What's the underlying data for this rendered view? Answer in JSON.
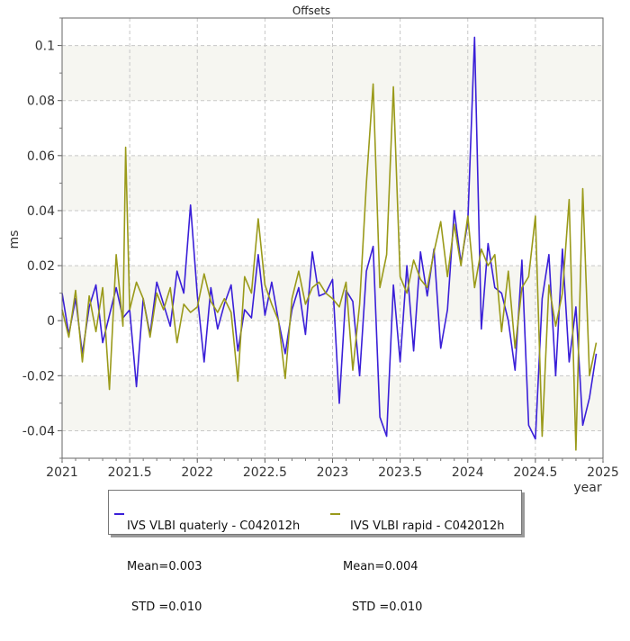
{
  "chart_data": {
    "type": "line",
    "title": "Offsets",
    "xlabel": "year",
    "ylabel": "ms",
    "xlim": [
      2021,
      2025
    ],
    "ylim": [
      -0.05,
      0.11
    ],
    "x_ticks": [
      "2021",
      "2021.5",
      "2022",
      "2022.5",
      "2023",
      "2023.5",
      "2024",
      "2024.5",
      "2025"
    ],
    "y_ticks": [
      "-0.04",
      "-0.02",
      "0",
      "0.02",
      "0.04",
      "0.06",
      "0.08",
      "0.1"
    ],
    "grid": true,
    "legend_position": "bottom",
    "series": [
      {
        "name": "IVS VLBI quaterly - C042012h",
        "mean_label": "Mean=0.003",
        "std_label": "STD =0.010",
        "color": "#3a1fd8",
        "x": [
          2021.0,
          2021.05,
          2021.1,
          2021.15,
          2021.2,
          2021.25,
          2021.3,
          2021.35,
          2021.4,
          2021.45,
          2021.5,
          2021.55,
          2021.6,
          2021.65,
          2021.7,
          2021.75,
          2021.8,
          2021.85,
          2021.9,
          2021.95,
          2022.0,
          2022.05,
          2022.1,
          2022.15,
          2022.2,
          2022.25,
          2022.3,
          2022.35,
          2022.4,
          2022.45,
          2022.5,
          2022.55,
          2022.6,
          2022.65,
          2022.7,
          2022.75,
          2022.8,
          2022.85,
          2022.9,
          2022.95,
          2023.0,
          2023.05,
          2023.1,
          2023.15,
          2023.2,
          2023.25,
          2023.3,
          2023.35,
          2023.4,
          2023.45,
          2023.5,
          2023.55,
          2023.6,
          2023.65,
          2023.7,
          2023.75,
          2023.8,
          2023.85,
          2023.9,
          2023.95,
          2024.0,
          2024.05,
          2024.1,
          2024.15,
          2024.2,
          2024.25,
          2024.3,
          2024.35,
          2024.4,
          2024.45,
          2024.5,
          2024.55,
          2024.6,
          2024.65,
          2024.7,
          2024.75,
          2024.8,
          2024.85,
          2024.9,
          2024.95
        ],
        "y": [
          0.01,
          -0.005,
          0.008,
          -0.012,
          0.005,
          0.013,
          -0.008,
          0.002,
          0.012,
          0.001,
          0.004,
          -0.024,
          0.008,
          -0.005,
          0.014,
          0.006,
          -0.002,
          0.018,
          0.01,
          0.042,
          0.009,
          -0.015,
          0.012,
          -0.003,
          0.006,
          0.013,
          -0.011,
          0.004,
          0.001,
          0.024,
          0.002,
          0.014,
          0.0,
          -0.012,
          0.004,
          0.012,
          -0.005,
          0.025,
          0.009,
          0.01,
          0.015,
          -0.03,
          0.011,
          0.007,
          -0.02,
          0.018,
          0.027,
          -0.035,
          -0.042,
          0.013,
          -0.015,
          0.02,
          -0.011,
          0.025,
          0.009,
          0.026,
          -0.01,
          0.004,
          0.04,
          0.021,
          0.036,
          0.103,
          -0.003,
          0.028,
          0.012,
          0.01,
          0.0,
          -0.018,
          0.022,
          -0.038,
          -0.043,
          0.008,
          0.024,
          -0.02,
          0.026,
          -0.015,
          0.005,
          -0.038,
          -0.028,
          -0.012
        ]
      },
      {
        "name": "IVS VLBI rapid - C042012h",
        "mean_label": "Mean=0.004",
        "std_label": "STD =0.010",
        "color": "#9a9a1a",
        "x": [
          2021.0,
          2021.05,
          2021.1,
          2021.15,
          2021.2,
          2021.25,
          2021.3,
          2021.35,
          2021.4,
          2021.45,
          2021.47,
          2021.5,
          2021.55,
          2021.6,
          2021.65,
          2021.7,
          2021.75,
          2021.8,
          2021.85,
          2021.9,
          2021.95,
          2022.0,
          2022.05,
          2022.1,
          2022.15,
          2022.2,
          2022.25,
          2022.3,
          2022.35,
          2022.4,
          2022.45,
          2022.5,
          2022.55,
          2022.6,
          2022.65,
          2022.7,
          2022.75,
          2022.8,
          2022.85,
          2022.9,
          2022.95,
          2023.0,
          2023.05,
          2023.1,
          2023.15,
          2023.2,
          2023.25,
          2023.3,
          2023.35,
          2023.4,
          2023.45,
          2023.5,
          2023.55,
          2023.6,
          2023.65,
          2023.7,
          2023.75,
          2023.8,
          2023.85,
          2023.9,
          2023.95,
          2024.0,
          2024.05,
          2024.1,
          2024.15,
          2024.2,
          2024.25,
          2024.3,
          2024.35,
          2024.4,
          2024.45,
          2024.5,
          2024.55,
          2024.6,
          2024.65,
          2024.7,
          2024.75,
          2024.8,
          2024.85,
          2024.9,
          2024.95
        ],
        "y": [
          0.004,
          -0.006,
          0.011,
          -0.015,
          0.009,
          -0.004,
          0.012,
          -0.025,
          0.024,
          -0.002,
          0.063,
          0.004,
          0.014,
          0.008,
          -0.006,
          0.01,
          0.004,
          0.012,
          -0.008,
          0.006,
          0.003,
          0.005,
          0.017,
          0.007,
          0.003,
          0.008,
          0.003,
          -0.022,
          0.016,
          0.01,
          0.037,
          0.013,
          0.006,
          0.0,
          -0.021,
          0.008,
          0.018,
          0.006,
          0.012,
          0.014,
          0.01,
          0.008,
          0.005,
          0.014,
          -0.018,
          0.006,
          0.05,
          0.086,
          0.012,
          0.024,
          0.085,
          0.016,
          0.01,
          0.022,
          0.015,
          0.012,
          0.025,
          0.036,
          0.016,
          0.035,
          0.02,
          0.038,
          0.012,
          0.026,
          0.02,
          0.024,
          -0.004,
          0.018,
          -0.01,
          0.012,
          0.016,
          0.038,
          -0.042,
          0.013,
          -0.002,
          0.01,
          0.044,
          -0.047,
          0.048,
          -0.02,
          -0.008
        ]
      }
    ]
  }
}
